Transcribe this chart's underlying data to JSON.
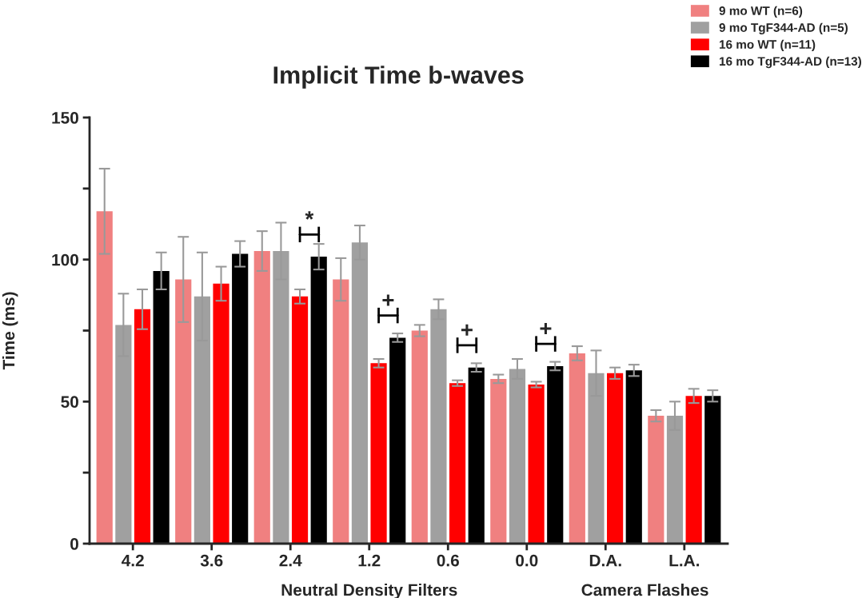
{
  "chart_data": {
    "type": "bar",
    "title": "Implicit Time b-waves",
    "ylabel": "Time (ms)",
    "categories": [
      "4.2",
      "3.6",
      "2.4",
      "1.2",
      "0.6",
      "0.0",
      "D.A.",
      "L.A."
    ],
    "series": [
      {
        "name": "9 mo WT (n=6)",
        "color": "#f08080",
        "values": [
          117,
          93,
          103,
          93,
          75,
          58,
          67,
          45
        ],
        "errors": [
          15,
          15,
          7,
          7.5,
          2,
          1.5,
          2.5,
          2
        ]
      },
      {
        "name": "9 mo TgF344-AD (n=5)",
        "color": "#a0a0a0",
        "values": [
          77,
          87,
          103,
          106,
          82.5,
          61.5,
          60,
          45
        ],
        "errors": [
          11,
          15.5,
          10,
          6,
          3.5,
          3.5,
          8,
          5
        ]
      },
      {
        "name": "16 mo WT (n=11)",
        "color": "#ff0000",
        "values": [
          82.5,
          91.5,
          87,
          63.5,
          56.5,
          56,
          60,
          52
        ],
        "errors": [
          7,
          6,
          2.5,
          1.5,
          1,
          1,
          2,
          2.5
        ]
      },
      {
        "name": "16 mo TgF344-AD (n=13)",
        "color": "#000000",
        "values": [
          96,
          102,
          101,
          72.5,
          62,
          62.5,
          61,
          52
        ],
        "errors": [
          6.5,
          4.5,
          4.5,
          1.5,
          1.5,
          1.5,
          2,
          2
        ]
      }
    ],
    "ylim": [
      0,
      150
    ],
    "yticks": [
      0,
      {
        "value": 25,
        "label": null
      },
      50,
      {
        "value": 75,
        "label": null
      },
      100,
      {
        "value": 125,
        "label": null
      },
      150
    ],
    "annotations": [
      "Neutral Density Filters",
      "Camera Flashes",
      {
        "text": "*",
        "x": "2.4",
        "y": 101
      },
      {
        "text": "+",
        "x": "1.2",
        "y": 72.5
      },
      {
        "text": "+",
        "x": "0.6",
        "y": 62
      },
      {
        "text": "+",
        "x": "0.0",
        "y": 62.5
      }
    ],
    "legend": "top right",
    "grid": false
  }
}
